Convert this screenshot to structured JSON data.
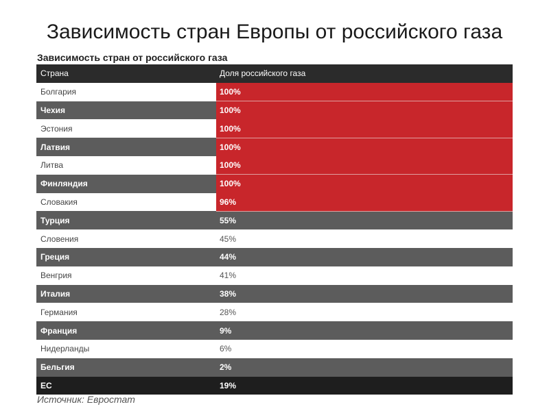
{
  "slide_title": "Зависимость стран Европы от российского газа",
  "table_title": "Зависимость стран от российского газа",
  "columns": [
    "Страна",
    "Доля российского газа"
  ],
  "rows": [
    {
      "country": "Болгария",
      "share": "100%",
      "highlight": true
    },
    {
      "country": "Чехия",
      "share": "100%",
      "highlight": true
    },
    {
      "country": "Эстония",
      "share": "100%",
      "highlight": true
    },
    {
      "country": "Латвия",
      "share": "100%",
      "highlight": true
    },
    {
      "country": "Литва",
      "share": "100%",
      "highlight": true
    },
    {
      "country": "Финляндия",
      "share": "100%",
      "highlight": true
    },
    {
      "country": "Словакия",
      "share": "96%",
      "highlight": true
    },
    {
      "country": "Турция",
      "share": "55%",
      "highlight": false
    },
    {
      "country": "Словения",
      "share": "45%",
      "highlight": false
    },
    {
      "country": "Греция",
      "share": "44%",
      "highlight": false
    },
    {
      "country": "Венгрия",
      "share": "41%",
      "highlight": false
    },
    {
      "country": "Италия",
      "share": "38%",
      "highlight": false
    },
    {
      "country": "Германия",
      "share": "28%",
      "highlight": false
    },
    {
      "country": "Франция",
      "share": "9%",
      "highlight": false
    },
    {
      "country": "Нидерланды",
      "share": "6%",
      "highlight": false
    },
    {
      "country": "Бельгия",
      "share": "2%",
      "highlight": false
    }
  ],
  "total": {
    "country": "ЕС",
    "share": "19%"
  },
  "source": "Источник: Евростат",
  "colors": {
    "highlight": "#c8262b",
    "header": "#2b2b2b",
    "stripe": "#5c5c5c",
    "total": "#1e1e1e"
  }
}
